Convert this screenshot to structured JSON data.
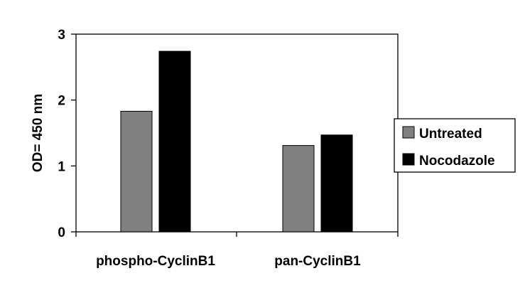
{
  "chart_data": {
    "type": "bar",
    "title": "",
    "xlabel": "",
    "ylabel": "OD= 450 nm",
    "ylim": [
      0,
      3
    ],
    "yticks": [
      0,
      1,
      2,
      3
    ],
    "grid": false,
    "legend_position": "right",
    "categories": [
      "phospho-CyclinB1",
      "pan-CyclinB1"
    ],
    "series": [
      {
        "name": "Untreated",
        "values": [
          1.83,
          1.31
        ],
        "color": "#808080"
      },
      {
        "name": "Nocodazole",
        "values": [
          2.74,
          1.47
        ],
        "color": "#000000"
      }
    ]
  }
}
